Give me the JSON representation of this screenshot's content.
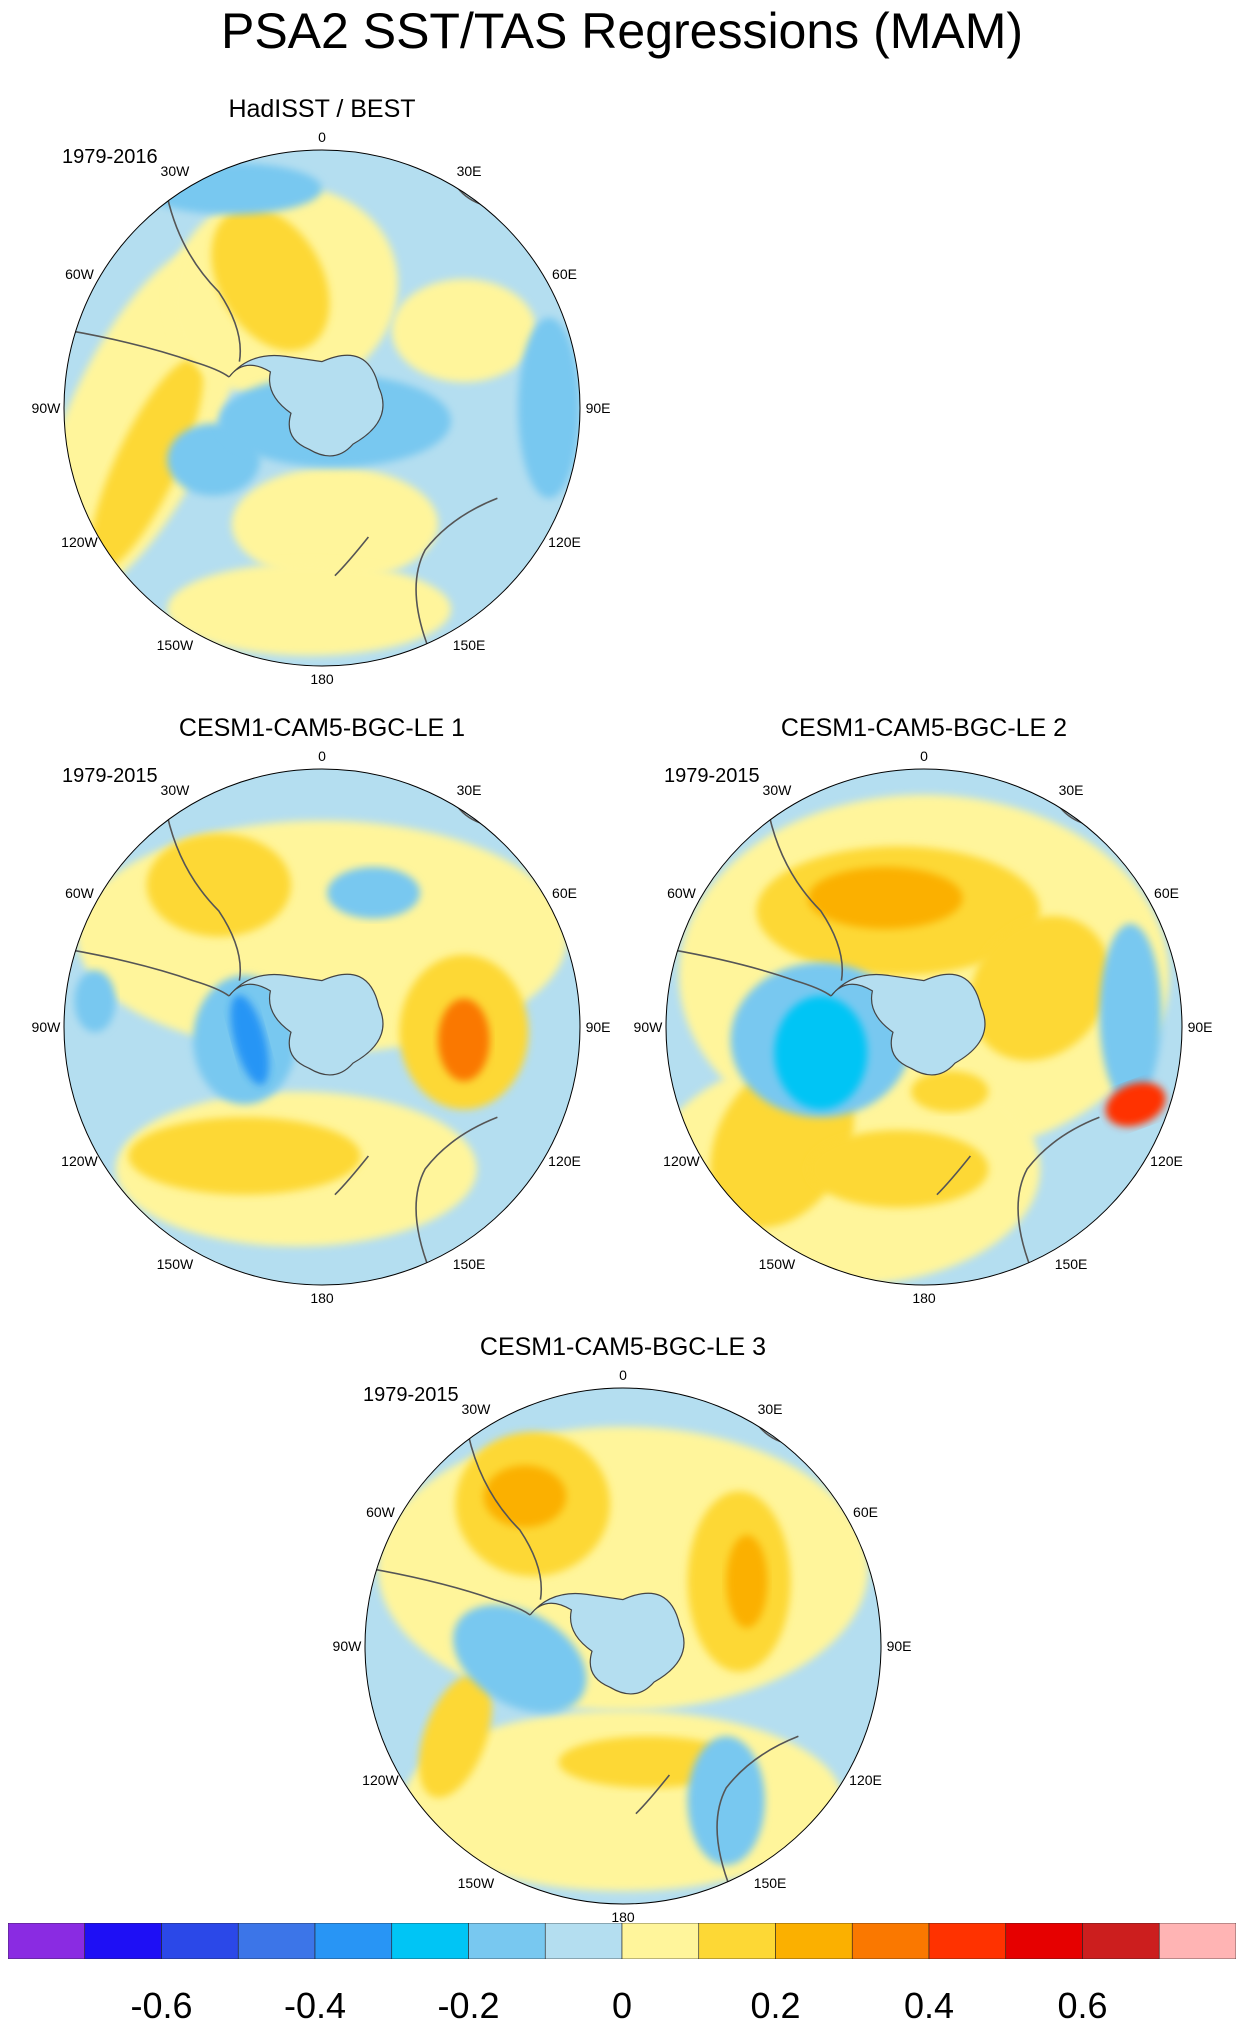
{
  "figure": {
    "title": "PSA2 SST/TAS Regressions (MAM)"
  },
  "panels": [
    {
      "title": "HadISST / BEST",
      "period": "1979-2016",
      "lon_labels": [
        "0",
        "30E",
        "60E",
        "90E",
        "120E",
        "150E",
        "180",
        "150W",
        "120W",
        "90W",
        "60W",
        "30W"
      ]
    },
    {
      "title": "CESM1-CAM5-BGC-LE 1",
      "period": "1979-2015",
      "lon_labels": [
        "0",
        "30E",
        "60E",
        "90E",
        "120E",
        "150E",
        "180",
        "150W",
        "120W",
        "90W",
        "60W",
        "30W"
      ]
    },
    {
      "title": "CESM1-CAM5-BGC-LE 2",
      "period": "1979-2015",
      "lon_labels": [
        "0",
        "30E",
        "60E",
        "90E",
        "120E",
        "150E",
        "180",
        "150W",
        "120W",
        "90W",
        "60W",
        "30W"
      ]
    },
    {
      "title": "CESM1-CAM5-BGC-LE 3",
      "period": "1979-2015",
      "lon_labels": [
        "0",
        "30E",
        "60E",
        "90E",
        "120E",
        "150E",
        "180",
        "150W",
        "120W",
        "90W",
        "60W",
        "30W"
      ]
    }
  ],
  "colorbar": {
    "colors": [
      "#8a2be2",
      "#1e0ff5",
      "#2b48e8",
      "#3c75e8",
      "#2895f5",
      "#00c5f5",
      "#78c8f0",
      "#b4def0",
      "#fff59b",
      "#fdd835",
      "#fbb000",
      "#fa7800",
      "#ff3200",
      "#e60000",
      "#cc1e1e",
      "#ffb4b4"
    ],
    "labels": [
      "-0.6",
      "-0.4",
      "-0.2",
      "0",
      "0.2",
      "0.4",
      "0.6"
    ]
  }
}
